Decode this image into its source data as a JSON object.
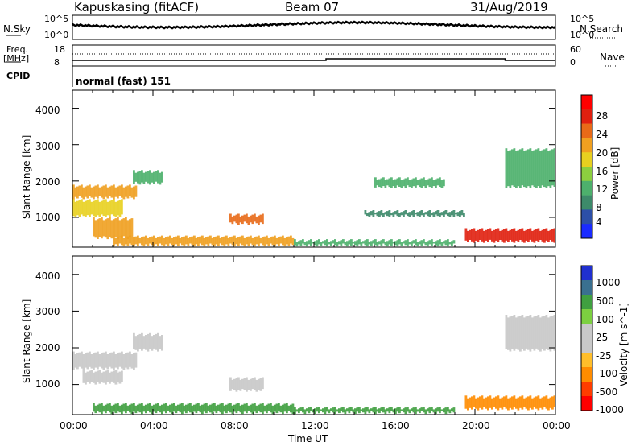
{
  "header": {
    "station": "Kapuskasing (fitACF)",
    "beam": "Beam 07",
    "date": "31/Aug/2019"
  },
  "panels": {
    "nsky_label": "N.Sky",
    "nsearch_label": "N.Search",
    "freq_label_line1": "Freq.",
    "freq_label_line2": "[MHz]",
    "nave_label": "Nave",
    "cpid_label": "CPID",
    "cpid_value": "normal (fast) 151",
    "noise_ticks_left": [
      "10^5",
      "10^0"
    ],
    "noise_ticks_right": [
      "10^5",
      "10^0"
    ],
    "freq_ticks": [
      "18",
      "8"
    ],
    "nave_ticks": [
      "60",
      "0"
    ]
  },
  "colors": {
    "power_scale": [
      "#1a2bff",
      "#2c4fa8",
      "#3d8a6a",
      "#4db06c",
      "#8ccf3f",
      "#e8d020",
      "#f0a020",
      "#e86a18",
      "#e02010",
      "#ff0000"
    ],
    "velocity_scale": [
      "#ff0000",
      "#ff3c00",
      "#ff8c00",
      "#ffbe2a",
      "#c8c8c8",
      "#c8c8c8",
      "#7cd040",
      "#40a040",
      "#3a7090",
      "#2030d0"
    ],
    "ground_scatter": "#c8c8c8"
  },
  "chart_data": [
    {
      "type": "heatmap",
      "title": "Power",
      "xlabel": "Time UT",
      "ylabel": "Slant Range [km]",
      "colorbar_label": "Power [dB]",
      "colorbar_ticks": [
        "28",
        "24",
        "20",
        "16",
        "12",
        "8",
        "4"
      ],
      "x_ticks": [
        "00:00",
        "04:00",
        "08:00",
        "12:00",
        "16:00",
        "20:00",
        "00:00"
      ],
      "y_ticks": [
        "1000",
        "2000",
        "3000",
        "4000"
      ],
      "xlim_hours": [
        0,
        24
      ],
      "ylim_km": [
        180,
        4500
      ],
      "regions": [
        {
          "t0": 0.0,
          "t1": 3.2,
          "r0": 1500,
          "r1": 1900,
          "power": 22
        },
        {
          "t0": 0.0,
          "t1": 2.5,
          "r0": 1000,
          "r1": 1500,
          "power": 18
        },
        {
          "t0": 1.0,
          "t1": 3.0,
          "r0": 400,
          "r1": 1000,
          "power": 20
        },
        {
          "t0": 3.0,
          "t1": 4.5,
          "r0": 1900,
          "r1": 2300,
          "power": 12
        },
        {
          "t0": 7.8,
          "t1": 9.5,
          "r0": 800,
          "r1": 1100,
          "power": 24
        },
        {
          "t0": 2.0,
          "t1": 11.0,
          "r0": 200,
          "r1": 500,
          "power": 20
        },
        {
          "t0": 11.0,
          "t1": 19.0,
          "r0": 200,
          "r1": 400,
          "power": 10
        },
        {
          "t0": 14.5,
          "t1": 19.5,
          "r0": 1000,
          "r1": 1200,
          "power": 8
        },
        {
          "t0": 15.0,
          "t1": 18.5,
          "r0": 1800,
          "r1": 2100,
          "power": 12
        },
        {
          "t0": 19.5,
          "t1": 24.0,
          "r0": 300,
          "r1": 700,
          "power": 26
        },
        {
          "t0": 21.5,
          "t1": 24.0,
          "r0": 1800,
          "r1": 2900,
          "power": 12
        }
      ]
    },
    {
      "type": "heatmap",
      "title": "Velocity",
      "xlabel": "Time UT",
      "ylabel": "Slant Range [km]",
      "colorbar_label": "Velocity [m s^-1]",
      "colorbar_ticks": [
        "1000",
        "500",
        "100",
        "25",
        "-25",
        "-100",
        "-500",
        "-1000"
      ],
      "x_ticks": [
        "00:00",
        "04:00",
        "08:00",
        "12:00",
        "16:00",
        "20:00",
        "00:00"
      ],
      "y_ticks": [
        "1000",
        "2000",
        "3000",
        "4000"
      ],
      "xlim_hours": [
        0,
        24
      ],
      "ylim_km": [
        180,
        4500
      ],
      "regions": [
        {
          "t0": 0.0,
          "t1": 3.2,
          "r0": 1400,
          "r1": 1900,
          "velocity": 0
        },
        {
          "t0": 0.5,
          "t1": 2.5,
          "r0": 1000,
          "r1": 1400,
          "velocity": 0
        },
        {
          "t0": 3.0,
          "t1": 4.5,
          "r0": 1900,
          "r1": 2400,
          "velocity": 0
        },
        {
          "t0": 7.8,
          "t1": 9.5,
          "r0": 800,
          "r1": 1200,
          "velocity": 0
        },
        {
          "t0": 1.0,
          "t1": 11.0,
          "r0": 200,
          "r1": 500,
          "velocity": 200
        },
        {
          "t0": 11.0,
          "t1": 19.0,
          "r0": 200,
          "r1": 400,
          "velocity": 150
        },
        {
          "t0": 19.5,
          "t1": 24.0,
          "r0": 300,
          "r1": 700,
          "velocity": -150
        },
        {
          "t0": 21.5,
          "t1": 24.0,
          "r0": 1900,
          "r1": 2900,
          "velocity": 0
        }
      ]
    }
  ]
}
